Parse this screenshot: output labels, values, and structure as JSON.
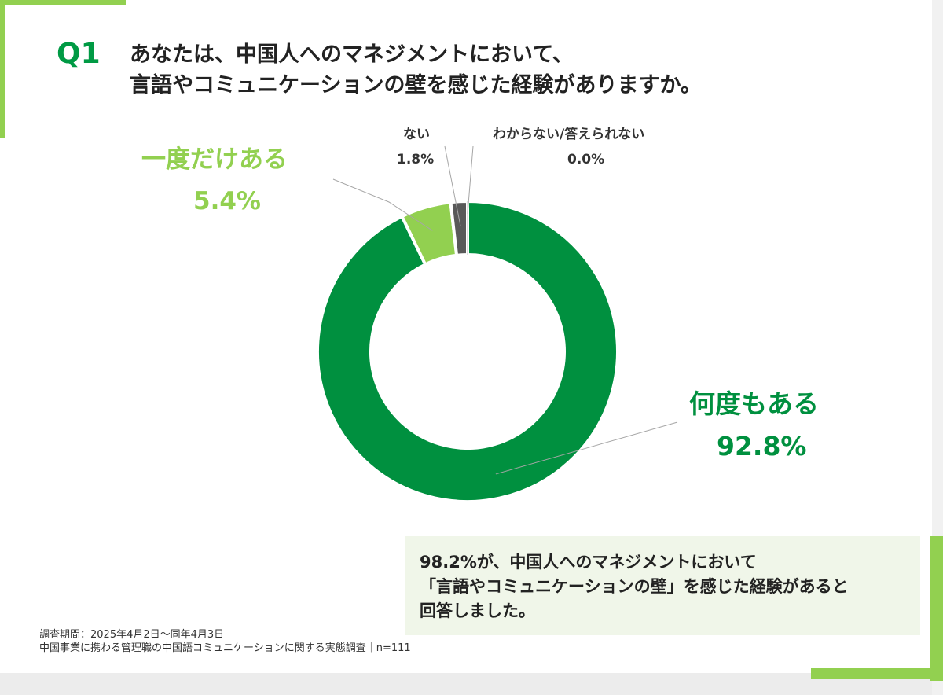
{
  "question": {
    "number": "Q1",
    "line1": "あなたは、中国人へのマネジメントにおいて、",
    "line2": "言語やコミュニケーションの壁を感じた経験がありますか。"
  },
  "chart_data": {
    "type": "pie",
    "variant": "donut",
    "title": "",
    "categories": [
      "何度もある",
      "一度だけある",
      "ない",
      "わからない/答えられない"
    ],
    "values": [
      92.8,
      5.4,
      1.8,
      0.0
    ],
    "value_labels": [
      "92.8%",
      "5.4%",
      "1.8%",
      "0.0%"
    ],
    "colors": [
      "#00903f",
      "#92d050",
      "#595959",
      "#bfbfbf"
    ],
    "start": "12 o'clock",
    "direction": "clockwise"
  },
  "summary": {
    "line1": "98.2%が、中国人へのマネジメントにおいて",
    "line2": "「言語やコミュニケーションの壁」を感じた経験があると",
    "line3": "回答しました。"
  },
  "footnote": {
    "line1": "調査期間：2025年4月2日〜同年4月3日",
    "line2": "中国事業に携わる管理職の中国語コミュニケーションに関する実態調査｜n=111"
  }
}
